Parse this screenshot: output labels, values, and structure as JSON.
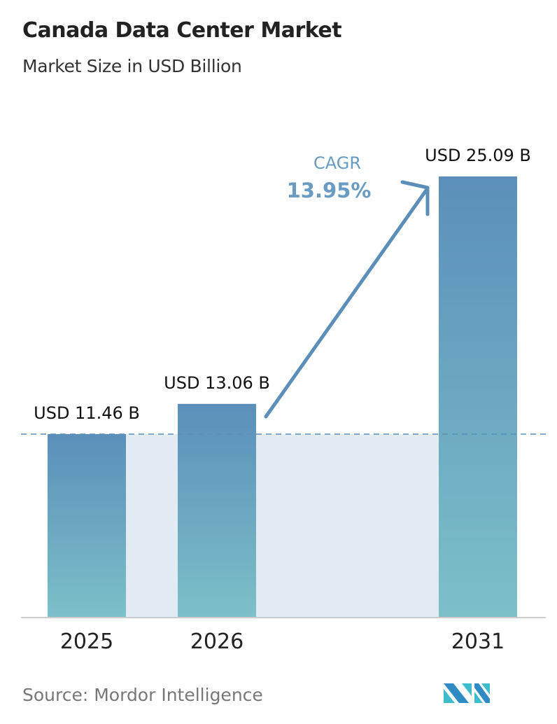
{
  "chart_data": {
    "type": "bar",
    "title": "Canada Data Center Market",
    "subtitle": "Market Size in USD Billion",
    "categories": [
      "2025",
      "2026",
      "2031"
    ],
    "values": [
      11.46,
      13.06,
      25.09
    ],
    "data_labels": [
      "USD 11.46 B",
      "USD 13.06 B",
      "USD 25.09 B"
    ],
    "annotation": {
      "label": "CAGR",
      "value": "13.95%"
    },
    "grid": false,
    "legend": "none",
    "colors": {
      "bar_top": "#5b8fba",
      "bar_bottom": "#7cc0c8",
      "arrow": "#5b8fba",
      "shade": "#e3ebf2"
    }
  },
  "source": "Source:  Mordor Intelligence",
  "logo": "Mordor Intelligence"
}
